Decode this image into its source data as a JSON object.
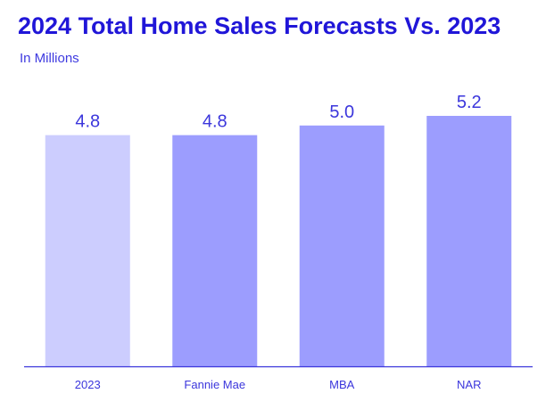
{
  "chart_data": {
    "type": "bar",
    "title": "2024 Total Home Sales Forecasts Vs. 2023",
    "subtitle": "In Millions",
    "categories": [
      "2023",
      "Fannie Mae",
      "MBA",
      "NAR"
    ],
    "values": [
      4.8,
      4.8,
      5.0,
      5.2
    ],
    "value_labels": [
      "4.8",
      "4.8",
      "5.0",
      "5.2"
    ],
    "xlabel": "",
    "ylabel": "",
    "ylim": [
      0,
      5.2
    ],
    "grid": false,
    "colors": {
      "highlight_bar": "#cccdfe",
      "bar": "#9c9dfe",
      "axis": "#3b36dc",
      "text": "#3b36dc",
      "title": "#2016d8"
    }
  }
}
